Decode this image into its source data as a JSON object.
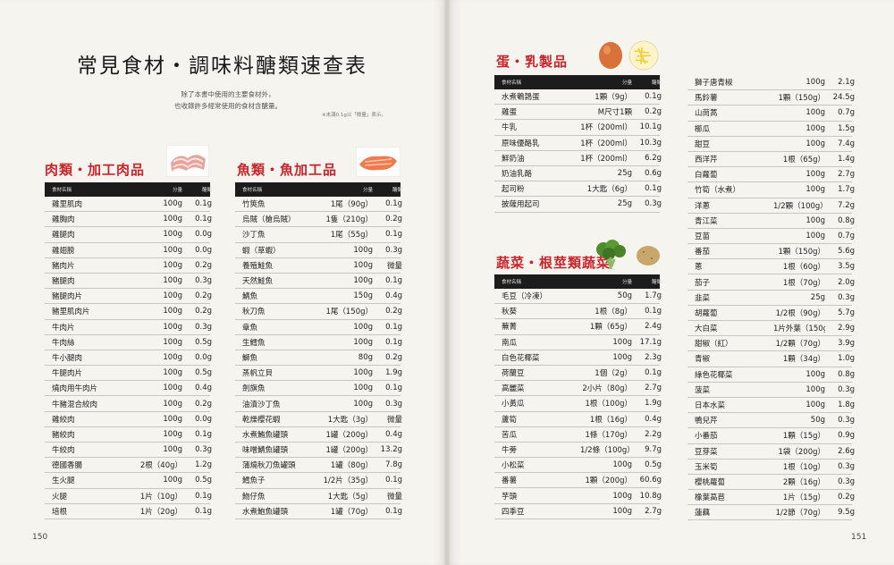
{
  "book": {
    "title": "常見食材・調味料醣類速查表",
    "intro_line1": "除了本書中使用的主要食材外，",
    "intro_line2": "也收錄許多經常使用的食材含醣量。",
    "note": "※未滿0.1g以「微量」表示。",
    "page_left": "150",
    "page_right": "151"
  },
  "headers": {
    "name": "食材名稱",
    "amount": "分量",
    "carb": "醣類"
  },
  "meat": {
    "title": "肉類・加工肉品",
    "rows": [
      {
        "name": "雞里肌肉",
        "amount": "100g",
        "carb": "0.1g"
      },
      {
        "name": "雞胸肉",
        "amount": "100g",
        "carb": "0.1g"
      },
      {
        "name": "雞腿肉",
        "amount": "100g",
        "carb": "0.0g"
      },
      {
        "name": "雞翅膀",
        "amount": "100g",
        "carb": "0.0g"
      },
      {
        "name": "豬肉片",
        "amount": "100g",
        "carb": "0.2g"
      },
      {
        "name": "豬腿肉",
        "amount": "100g",
        "carb": "0.3g"
      },
      {
        "name": "豬腿肉片",
        "amount": "100g",
        "carb": "0.2g"
      },
      {
        "name": "豬里肌肉片",
        "amount": "100g",
        "carb": "0.2g"
      },
      {
        "name": "牛肉片",
        "amount": "100g",
        "carb": "0.3g"
      },
      {
        "name": "牛肉絲",
        "amount": "100g",
        "carb": "0.5g"
      },
      {
        "name": "牛小腿肉",
        "amount": "100g",
        "carb": "0.0g"
      },
      {
        "name": "牛腿肉片",
        "amount": "100g",
        "carb": "0.5g"
      },
      {
        "name": "燒肉用牛肉片",
        "amount": "100g",
        "carb": "0.4g"
      },
      {
        "name": "牛豬混合絞肉",
        "amount": "100g",
        "carb": "0.2g"
      },
      {
        "name": "雞絞肉",
        "amount": "100g",
        "carb": "0.0g"
      },
      {
        "name": "豬絞肉",
        "amount": "100g",
        "carb": "0.1g"
      },
      {
        "name": "牛絞肉",
        "amount": "100g",
        "carb": "0.3g"
      },
      {
        "name": "德國香腸",
        "amount": "2根（40g）",
        "carb": "1.2g"
      },
      {
        "name": "生火腿",
        "amount": "100g",
        "carb": "0.5g"
      },
      {
        "name": "火腿",
        "amount": "1片（10g）",
        "carb": "0.1g"
      },
      {
        "name": "培根",
        "amount": "1片（20g）",
        "carb": "0.1g"
      }
    ]
  },
  "fish": {
    "title": "魚類・魚加工品",
    "rows": [
      {
        "name": "竹筴魚",
        "amount": "1尾（90g）",
        "carb": "0.1g"
      },
      {
        "name": "烏賊（槍烏賊）",
        "amount": "1隻（210g）",
        "carb": "0.2g"
      },
      {
        "name": "沙丁魚",
        "amount": "1尾（55g）",
        "carb": "0.1g"
      },
      {
        "name": "蝦（草蝦）",
        "amount": "100g",
        "carb": "0.3g"
      },
      {
        "name": "養殖鮭魚",
        "amount": "100g",
        "carb": "微量"
      },
      {
        "name": "天然鮭魚",
        "amount": "100g",
        "carb": "0.1g"
      },
      {
        "name": "鯖魚",
        "amount": "150g",
        "carb": "0.4g"
      },
      {
        "name": "秋刀魚",
        "amount": "1尾（150g）",
        "carb": "0.2g"
      },
      {
        "name": "章魚",
        "amount": "100g",
        "carb": "0.1g"
      },
      {
        "name": "生鱈魚",
        "amount": "100g",
        "carb": "0.1g"
      },
      {
        "name": "鰤魚",
        "amount": "80g",
        "carb": "0.2g"
      },
      {
        "name": "蒸帆立貝",
        "amount": "100g",
        "carb": "1.9g"
      },
      {
        "name": "劍旗魚",
        "amount": "100g",
        "carb": "0.1g"
      },
      {
        "name": "油漬沙丁魚",
        "amount": "100g",
        "carb": "0.3g"
      },
      {
        "name": "乾燥櫻花蝦",
        "amount": "1大匙（3g）",
        "carb": "微量"
      },
      {
        "name": "水煮鮪魚罐頭",
        "amount": "1罐（200g）",
        "carb": "0.4g"
      },
      {
        "name": "味噌鯖魚罐頭",
        "amount": "1罐（200g）",
        "carb": "13.2g"
      },
      {
        "name": "蒲燒秋刀魚罐頭",
        "amount": "1罐（80g）",
        "carb": "7.8g"
      },
      {
        "name": "鱈魚子",
        "amount": "1/2片（35g）",
        "carb": "0.1g"
      },
      {
        "name": "魩仔魚",
        "amount": "1大匙（5g）",
        "carb": "微量"
      },
      {
        "name": "水煮鮑魚罐頭",
        "amount": "1罐（70g）",
        "carb": "0.1g"
      }
    ]
  },
  "dairy": {
    "title": "蛋・乳製品",
    "rows": [
      {
        "name": "水煮鵪鶉蛋",
        "amount": "1顆（9g）",
        "carb": "0.1g"
      },
      {
        "name": "雞蛋",
        "amount": "M尺寸1顆",
        "carb": "0.2g"
      },
      {
        "name": "牛乳",
        "amount": "1杯（200ml）",
        "carb": "10.1g"
      },
      {
        "name": "原味優酪乳",
        "amount": "1杯（200ml）",
        "carb": "10.3g"
      },
      {
        "name": "鮮奶油",
        "amount": "1杯（200ml）",
        "carb": "6.2g"
      },
      {
        "name": "奶油乳酪",
        "amount": "25g",
        "carb": "0.6g"
      },
      {
        "name": "起司粉",
        "amount": "1大匙（6g）",
        "carb": "0.1g"
      },
      {
        "name": "披薩用起司",
        "amount": "25g",
        "carb": "0.3g"
      }
    ]
  },
  "veg": {
    "title": "蔬菜・根莖類蔬菜",
    "rows": [
      {
        "name": "毛豆（冷凍）",
        "amount": "50g",
        "carb": "1.7g"
      },
      {
        "name": "秋葵",
        "amount": "1根（8g）",
        "carb": "0.1g"
      },
      {
        "name": "蕪菁",
        "amount": "1顆（65g）",
        "carb": "2.4g"
      },
      {
        "name": "南瓜",
        "amount": "100g",
        "carb": "17.1g"
      },
      {
        "name": "白色花椰菜",
        "amount": "100g",
        "carb": "2.3g"
      },
      {
        "name": "荷蘭豆",
        "amount": "1個（2g）",
        "carb": "0.1g"
      },
      {
        "name": "高麗菜",
        "amount": "2小片（80g）",
        "carb": "2.7g"
      },
      {
        "name": "小黃瓜",
        "amount": "1根（100g）",
        "carb": "1.9g"
      },
      {
        "name": "蘆筍",
        "amount": "1根（16g）",
        "carb": "0.4g"
      },
      {
        "name": "苦瓜",
        "amount": "1條（170g）",
        "carb": "2.2g"
      },
      {
        "name": "牛蒡",
        "amount": "1/2條（100g）",
        "carb": "9.7g"
      },
      {
        "name": "小松菜",
        "amount": "100g",
        "carb": "0.5g"
      },
      {
        "name": "番薯",
        "amount": "1顆（200g）",
        "carb": "60.6g"
      },
      {
        "name": "芋頭",
        "amount": "100g",
        "carb": "10.8g"
      },
      {
        "name": "四季豆",
        "amount": "100g",
        "carb": "2.7g"
      }
    ]
  },
  "veg2": {
    "rows": [
      {
        "name": "獅子唐青椒",
        "amount": "100g",
        "carb": "2.1g"
      },
      {
        "name": "馬鈴薯",
        "amount": "1顆（150g）",
        "carb": "24.5g"
      },
      {
        "name": "山茼蒿",
        "amount": "100g",
        "carb": "0.7g"
      },
      {
        "name": "櫛瓜",
        "amount": "100g",
        "carb": "1.5g"
      },
      {
        "name": "甜豆",
        "amount": "100g",
        "carb": "7.4g"
      },
      {
        "name": "西洋芹",
        "amount": "1根（65g）",
        "carb": "1.4g"
      },
      {
        "name": "白蘿蔔",
        "amount": "100g",
        "carb": "2.7g"
      },
      {
        "name": "竹筍（水煮）",
        "amount": "100g",
        "carb": "1.7g"
      },
      {
        "name": "洋蔥",
        "amount": "1/2顆（100g）",
        "carb": "7.2g"
      },
      {
        "name": "青江菜",
        "amount": "100g",
        "carb": "0.8g"
      },
      {
        "name": "豆苗",
        "amount": "100g",
        "carb": "0.7g"
      },
      {
        "name": "番茄",
        "amount": "1顆（150g）",
        "carb": "5.6g"
      },
      {
        "name": "蔥",
        "amount": "1根（60g）",
        "carb": "3.5g"
      },
      {
        "name": "茄子",
        "amount": "1根（70g）",
        "carb": "2.0g"
      },
      {
        "name": "韭菜",
        "amount": "25g",
        "carb": "0.3g"
      },
      {
        "name": "胡蘿蔔",
        "amount": "1/2根（90g）",
        "carb": "5.7g"
      },
      {
        "name": "大白菜",
        "amount": "1片外葉（150g）",
        "carb": "2.9g"
      },
      {
        "name": "甜椒（紅）",
        "amount": "1/2顆（70g）",
        "carb": "3.9g"
      },
      {
        "name": "青椒",
        "amount": "1顆（34g）",
        "carb": "1.0g"
      },
      {
        "name": "綠色花椰菜",
        "amount": "100g",
        "carb": "0.8g"
      },
      {
        "name": "菠菜",
        "amount": "100g",
        "carb": "0.3g"
      },
      {
        "name": "日本水菜",
        "amount": "100g",
        "carb": "1.8g"
      },
      {
        "name": "鴨兒芹",
        "amount": "50g",
        "carb": "0.3g"
      },
      {
        "name": "小番茄",
        "amount": "1顆（15g）",
        "carb": "0.9g"
      },
      {
        "name": "豆芽菜",
        "amount": "1袋（200g）",
        "carb": "2.6g"
      },
      {
        "name": "玉米筍",
        "amount": "1根（10g）",
        "carb": "0.3g"
      },
      {
        "name": "櫻桃蘿蔔",
        "amount": "2顆（16g）",
        "carb": "0.3g"
      },
      {
        "name": "橡葉萵苣",
        "amount": "1片（15g）",
        "carb": "0.2g"
      },
      {
        "name": "蓮藕",
        "amount": "1/2節（70g）",
        "carb": "9.5g"
      }
    ]
  },
  "colors": {
    "accent_red": "#c8242b",
    "header_black": "#1c1c1c"
  }
}
